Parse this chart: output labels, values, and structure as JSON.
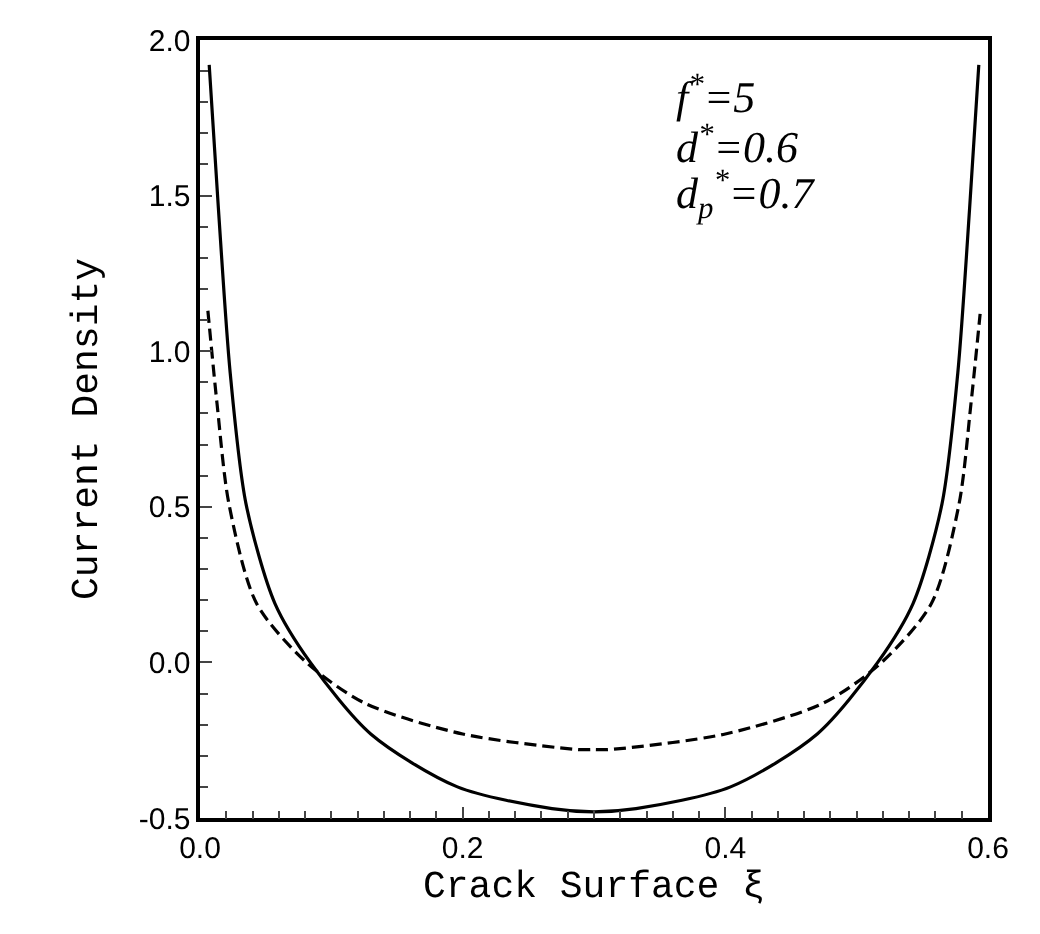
{
  "chart_data": {
    "type": "line",
    "xlabel": "Crack Surface ξ",
    "ylabel": "Current Density",
    "annotations": [
      "f$^{*}$=5",
      "d$^{*}$=0.6",
      "d$_{p}$$^{*}$=0.7"
    ],
    "xlim": [
      0,
      0.6
    ],
    "xticks": [
      {
        "value": 0,
        "label": "0.0"
      },
      0.2,
      0.4,
      0.6
    ],
    "ylim": [
      -0.5,
      2.0
    ],
    "yticks": [
      -0.5,
      {
        "value": 0,
        "label": "0.0"
      },
      0.5,
      {
        "value": 1,
        "label": "1.0"
      },
      1.5,
      {
        "value": 2,
        "label": "2.0"
      }
    ],
    "marker": "none",
    "series": [
      {
        "color": "#000000",
        "line_style": "solid",
        "x": [
          0.007,
          0.014,
          0.023,
          0.035,
          0.057,
          0.084,
          0.13,
          0.196,
          0.268,
          0.3,
          0.332,
          0.404,
          0.47,
          0.516,
          0.543,
          0.565,
          0.577,
          0.586,
          0.593
        ],
        "values": [
          1.92,
          1.46,
          0.93,
          0.51,
          0.19,
          0.0,
          -0.23,
          -0.4,
          -0.47,
          -0.48,
          -0.47,
          -0.4,
          -0.23,
          0.0,
          0.19,
          0.51,
          0.93,
          1.46,
          1.92
        ]
      },
      {
        "color": "#000000",
        "line_style": "dashed",
        "x": [
          0.006,
          0.013,
          0.022,
          0.043,
          0.081,
          0.125,
          0.2,
          0.288,
          0.3,
          0.312,
          0.4,
          0.475,
          0.519,
          0.557,
          0.578,
          0.587,
          0.594
        ],
        "values": [
          1.13,
          0.83,
          0.51,
          0.19,
          0.0,
          -0.13,
          -0.23,
          -0.28,
          -0.28,
          -0.28,
          -0.23,
          -0.13,
          0.0,
          0.19,
          0.51,
          0.83,
          1.12
        ]
      }
    ]
  }
}
